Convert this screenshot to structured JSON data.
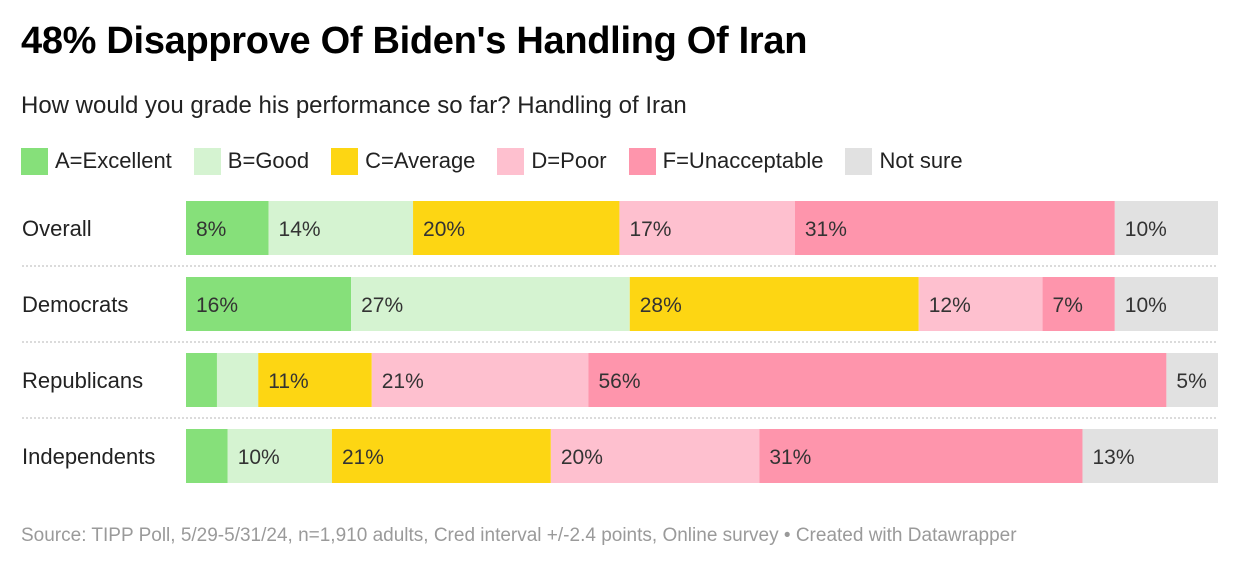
{
  "header": {
    "title": "48% Disapprove Of Biden's Handling Of Iran",
    "subtitle": "How would you grade his performance so far? Handling of Iran"
  },
  "footer": {
    "source": "Source: TIPP Poll, 5/29-5/31/24, n=1,910 adults, Cred interval +/-2.4 points, Online survey • Created with Datawrapper"
  },
  "chart_data": {
    "type": "bar",
    "orientation": "horizontal",
    "stacked": "100%",
    "title": "48% Disapprove Of Biden's Handling Of Iran",
    "subtitle": "How would you grade his performance so far? Handling of Iran",
    "categories": [
      "Overall",
      "Democrats",
      "Republicans",
      "Independents"
    ],
    "series": [
      {
        "name": "A=Excellent",
        "color": "#86e07a",
        "values": [
          8,
          16,
          3,
          4
        ],
        "labels": [
          "8%",
          "16%",
          "",
          ""
        ]
      },
      {
        "name": "B=Good",
        "color": "#d5f3d1",
        "values": [
          14,
          27,
          4,
          10
        ],
        "labels": [
          "14%",
          "27%",
          "",
          "10%"
        ]
      },
      {
        "name": "C=Average",
        "color": "#fdd613",
        "values": [
          20,
          28,
          11,
          21
        ],
        "labels": [
          "20%",
          "28%",
          "11%",
          "21%"
        ]
      },
      {
        "name": "D=Poor",
        "color": "#fec0cf",
        "values": [
          17,
          12,
          21,
          20
        ],
        "labels": [
          "17%",
          "12%",
          "21%",
          "20%"
        ]
      },
      {
        "name": "F=Unacceptable",
        "color": "#fe95ac",
        "values": [
          31,
          7,
          56,
          31
        ],
        "labels": [
          "31%",
          "7%",
          "56%",
          "31%"
        ]
      },
      {
        "name": "Not sure",
        "color": "#e1e1e1",
        "values": [
          10,
          10,
          5,
          13
        ],
        "labels": [
          "10%",
          "10%",
          "5%",
          "13%"
        ]
      }
    ],
    "xlabel": "",
    "ylabel": "",
    "xlim": [
      0,
      100
    ],
    "legend_position": "top",
    "grid": false
  }
}
